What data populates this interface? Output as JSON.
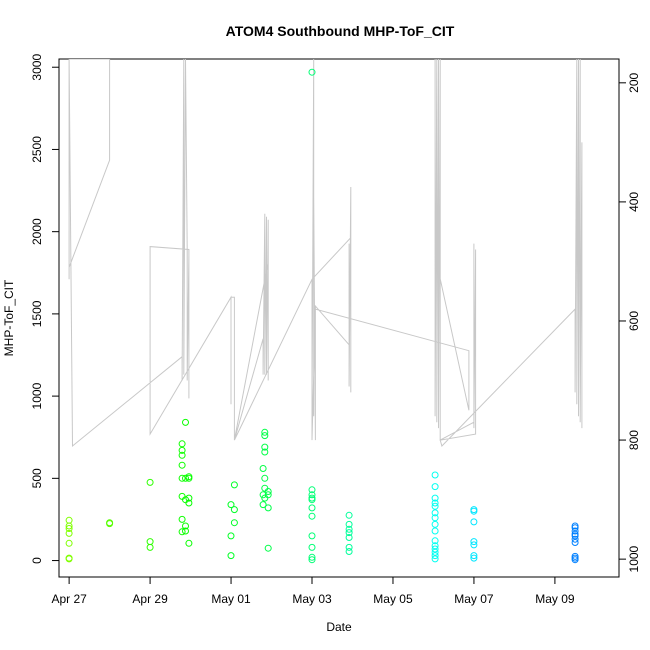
{
  "chart_data": {
    "type": "scatter",
    "title": "ATOM4 Southbound MHP-ToF_CIT",
    "xlabel": "Date",
    "ylabel": "MHP-ToF_CIT",
    "x_unit": "days",
    "xlim": [
      "2024-04-26T18:00",
      "2024-05-10T14:00"
    ],
    "ylim": [
      -100,
      3050
    ],
    "y_ticks": [
      0,
      500,
      1000,
      1500,
      2000,
      2500,
      3000
    ],
    "x_ticks": [
      {
        "label": "Apr 27",
        "date": "2024-04-27"
      },
      {
        "label": "Apr 29",
        "date": "2024-04-29"
      },
      {
        "label": "May 01",
        "date": "2024-05-01"
      },
      {
        "label": "May 03",
        "date": "2024-05-03"
      },
      {
        "label": "May 05",
        "date": "2024-05-05"
      },
      {
        "label": "May 07",
        "date": "2024-05-07"
      },
      {
        "label": "May 09",
        "date": "2024-05-09"
      }
    ],
    "y2lim": [
      1030,
      160
    ],
    "y2_ticks": [
      200,
      400,
      600,
      800,
      1000
    ],
    "series": [
      {
        "kind": "points",
        "points": [
          {
            "x": "2024-04-27T00:00",
            "y": 245
          },
          {
            "x": "2024-04-27T00:00",
            "y": 210
          },
          {
            "x": "2024-04-27T00:00",
            "y": 195
          },
          {
            "x": "2024-04-27T00:00",
            "y": 165
          },
          {
            "x": "2024-04-27T00:00",
            "y": 105
          },
          {
            "x": "2024-04-27T00:00",
            "y": 15
          },
          {
            "x": "2024-04-27T00:00",
            "y": 10
          },
          {
            "x": "2024-04-28T00:00",
            "y": 230
          },
          {
            "x": "2024-04-28T00:00",
            "y": 225
          },
          {
            "x": "2024-04-29T00:00",
            "y": 475
          },
          {
            "x": "2024-04-29T00:00",
            "y": 115
          },
          {
            "x": "2024-04-29T00:00",
            "y": 80
          },
          {
            "x": "2024-04-29T19:00",
            "y": 710
          },
          {
            "x": "2024-04-29T19:00",
            "y": 670
          },
          {
            "x": "2024-04-29T19:00",
            "y": 640
          },
          {
            "x": "2024-04-29T19:00",
            "y": 580
          },
          {
            "x": "2024-04-29T19:00",
            "y": 500
          },
          {
            "x": "2024-04-29T19:00",
            "y": 390
          },
          {
            "x": "2024-04-29T19:00",
            "y": 250
          },
          {
            "x": "2024-04-29T19:00",
            "y": 175
          },
          {
            "x": "2024-04-29T21:00",
            "y": 840
          },
          {
            "x": "2024-04-29T21:00",
            "y": 500
          },
          {
            "x": "2024-04-29T21:00",
            "y": 370
          },
          {
            "x": "2024-04-29T21:00",
            "y": 210
          },
          {
            "x": "2024-04-29T21:00",
            "y": 180
          },
          {
            "x": "2024-04-29T23:00",
            "y": 510
          },
          {
            "x": "2024-04-29T23:00",
            "y": 500
          },
          {
            "x": "2024-04-29T23:00",
            "y": 380
          },
          {
            "x": "2024-04-29T23:00",
            "y": 350
          },
          {
            "x": "2024-04-29T23:00",
            "y": 105
          },
          {
            "x": "2024-05-01T00:00",
            "y": 340
          },
          {
            "x": "2024-05-01T00:00",
            "y": 150
          },
          {
            "x": "2024-05-01T00:00",
            "y": 30
          },
          {
            "x": "2024-05-01T02:00",
            "y": 460
          },
          {
            "x": "2024-05-01T02:00",
            "y": 310
          },
          {
            "x": "2024-05-01T02:00",
            "y": 230
          },
          {
            "x": "2024-05-01T19:00",
            "y": 560
          },
          {
            "x": "2024-05-01T19:00",
            "y": 400
          },
          {
            "x": "2024-05-01T19:00",
            "y": 340
          },
          {
            "x": "2024-05-01T20:00",
            "y": 780
          },
          {
            "x": "2024-05-01T20:00",
            "y": 760
          },
          {
            "x": "2024-05-01T20:00",
            "y": 690
          },
          {
            "x": "2024-05-01T20:00",
            "y": 660
          },
          {
            "x": "2024-05-01T20:00",
            "y": 500
          },
          {
            "x": "2024-05-01T20:00",
            "y": 440
          },
          {
            "x": "2024-05-01T20:00",
            "y": 380
          },
          {
            "x": "2024-05-01T22:00",
            "y": 420
          },
          {
            "x": "2024-05-01T22:00",
            "y": 400
          },
          {
            "x": "2024-05-01T22:00",
            "y": 320
          },
          {
            "x": "2024-05-01T22:00",
            "y": 75
          },
          {
            "x": "2024-05-03T00:00",
            "y": 2970
          },
          {
            "x": "2024-05-03T00:00",
            "y": 430
          },
          {
            "x": "2024-05-03T00:00",
            "y": 400
          },
          {
            "x": "2024-05-03T00:00",
            "y": 380
          },
          {
            "x": "2024-05-03T00:00",
            "y": 370
          },
          {
            "x": "2024-05-03T00:00",
            "y": 320
          },
          {
            "x": "2024-05-03T00:00",
            "y": 270
          },
          {
            "x": "2024-05-03T00:00",
            "y": 150
          },
          {
            "x": "2024-05-03T00:00",
            "y": 80
          },
          {
            "x": "2024-05-03T00:00",
            "y": 20
          },
          {
            "x": "2024-05-03T00:00",
            "y": 5
          },
          {
            "x": "2024-05-03T22:00",
            "y": 275
          },
          {
            "x": "2024-05-03T22:00",
            "y": 220
          },
          {
            "x": "2024-05-03T22:00",
            "y": 190
          },
          {
            "x": "2024-05-03T22:00",
            "y": 170
          },
          {
            "x": "2024-05-03T22:00",
            "y": 140
          },
          {
            "x": "2024-05-03T22:00",
            "y": 80
          },
          {
            "x": "2024-05-03T22:00",
            "y": 55
          },
          {
            "x": "2024-05-06T01:00",
            "y": 520
          },
          {
            "x": "2024-05-06T01:00",
            "y": 450
          },
          {
            "x": "2024-05-06T01:00",
            "y": 380
          },
          {
            "x": "2024-05-06T01:00",
            "y": 350
          },
          {
            "x": "2024-05-06T01:00",
            "y": 330
          },
          {
            "x": "2024-05-06T01:00",
            "y": 290
          },
          {
            "x": "2024-05-06T01:00",
            "y": 260
          },
          {
            "x": "2024-05-06T01:00",
            "y": 220
          },
          {
            "x": "2024-05-06T01:00",
            "y": 180
          },
          {
            "x": "2024-05-06T01:00",
            "y": 120
          },
          {
            "x": "2024-05-06T01:00",
            "y": 90
          },
          {
            "x": "2024-05-06T01:00",
            "y": 70
          },
          {
            "x": "2024-05-06T01:00",
            "y": 50
          },
          {
            "x": "2024-05-06T01:00",
            "y": 30
          },
          {
            "x": "2024-05-06T01:00",
            "y": 10
          },
          {
            "x": "2024-05-07T00:00",
            "y": 310
          },
          {
            "x": "2024-05-07T00:00",
            "y": 300
          },
          {
            "x": "2024-05-07T00:00",
            "y": 235
          },
          {
            "x": "2024-05-07T00:00",
            "y": 115
          },
          {
            "x": "2024-05-07T00:00",
            "y": 95
          },
          {
            "x": "2024-05-07T00:00",
            "y": 30
          },
          {
            "x": "2024-05-07T00:00",
            "y": 15
          },
          {
            "x": "2024-05-09T12:00",
            "y": 210
          },
          {
            "x": "2024-05-09T12:00",
            "y": 200
          },
          {
            "x": "2024-05-09T12:00",
            "y": 180
          },
          {
            "x": "2024-05-09T12:00",
            "y": 160
          },
          {
            "x": "2024-05-09T12:00",
            "y": 150
          },
          {
            "x": "2024-05-09T12:00",
            "y": 130
          },
          {
            "x": "2024-05-09T12:00",
            "y": 110
          },
          {
            "x": "2024-05-09T12:00",
            "y": 25
          },
          {
            "x": "2024-05-09T12:00",
            "y": 15
          },
          {
            "x": "2024-05-09T12:00",
            "y": 5
          }
        ]
      },
      {
        "kind": "line",
        "axis": "right",
        "color": "#c8c8c8",
        "points": [
          {
            "x": "2024-04-27T00:00",
            "y": 160
          },
          {
            "x": "2024-04-27T00:00",
            "y": 530
          },
          {
            "x": "2024-04-27T00:00",
            "y": 510
          },
          {
            "x": "2024-04-28T00:00",
            "y": 330
          },
          {
            "x": "2024-04-28T00:00",
            "y": 160
          },
          {
            "x": "2024-04-28T00:00",
            "y": 160
          },
          {
            "x": "2024-04-27T00:00",
            "y": 160
          },
          {
            "x": "2024-04-27T02:00",
            "y": 810
          },
          {
            "x": "2024-04-29T19:00",
            "y": 660
          },
          {
            "x": "2024-04-29T19:00",
            "y": 700
          },
          {
            "x": "2024-04-29T20:00",
            "y": 160
          },
          {
            "x": "2024-04-29T20:00",
            "y": 690
          },
          {
            "x": "2024-04-29T21:00",
            "y": 160
          },
          {
            "x": "2024-04-29T22:00",
            "y": 480
          },
          {
            "x": "2024-04-29T22:00",
            "y": 700
          },
          {
            "x": "2024-04-29T23:00",
            "y": 490
          },
          {
            "x": "2024-04-29T23:00",
            "y": 730
          },
          {
            "x": "2024-04-29T23:00",
            "y": 480
          },
          {
            "x": "2024-04-29T00:00",
            "y": 475
          },
          {
            "x": "2024-04-29T00:00",
            "y": 790
          },
          {
            "x": "2024-05-01T00:00",
            "y": 560
          },
          {
            "x": "2024-05-01T00:00",
            "y": 740
          },
          {
            "x": "2024-05-01T00:00",
            "y": 560
          },
          {
            "x": "2024-05-01T02:00",
            "y": 560
          },
          {
            "x": "2024-05-01T02:00",
            "y": 800
          },
          {
            "x": "2024-05-01T19:00",
            "y": 630
          },
          {
            "x": "2024-05-01T19:00",
            "y": 690
          },
          {
            "x": "2024-05-01T20:00",
            "y": 420
          },
          {
            "x": "2024-05-01T20:00",
            "y": 690
          },
          {
            "x": "2024-05-01T21:00",
            "y": 425
          },
          {
            "x": "2024-05-01T21:00",
            "y": 690
          },
          {
            "x": "2024-05-01T22:00",
            "y": 430
          },
          {
            "x": "2024-05-01T22:00",
            "y": 700
          },
          {
            "x": "2024-05-01T22:00",
            "y": 500
          },
          {
            "x": "2024-05-01T02:00",
            "y": 800
          },
          {
            "x": "2024-05-03T00:00",
            "y": 530
          },
          {
            "x": "2024-05-03T00:00",
            "y": 580
          },
          {
            "x": "2024-05-03T00:00",
            "y": 760
          },
          {
            "x": "2024-05-03T01:00",
            "y": 160
          },
          {
            "x": "2024-05-03T01:00",
            "y": 760
          },
          {
            "x": "2024-05-03T01:00",
            "y": 390
          },
          {
            "x": "2024-05-03T02:00",
            "y": 800
          },
          {
            "x": "2024-05-03T02:00",
            "y": 580
          },
          {
            "x": "2024-05-03T02:00",
            "y": 575
          },
          {
            "x": "2024-05-03T22:00",
            "y": 640
          },
          {
            "x": "2024-05-03T22:00",
            "y": 470
          },
          {
            "x": "2024-05-03T22:00",
            "y": 710
          },
          {
            "x": "2024-05-03T23:00",
            "y": 375
          },
          {
            "x": "2024-05-03T23:00",
            "y": 720
          },
          {
            "x": "2024-05-03T23:00",
            "y": 460
          },
          {
            "x": "2024-05-03T00:00",
            "y": 530
          },
          {
            "x": "2024-05-03T00:00",
            "y": 800
          },
          {
            "x": "2024-05-03T02:00",
            "y": 580
          },
          {
            "x": "2024-05-06T21:00",
            "y": 650
          },
          {
            "x": "2024-05-06T21:00",
            "y": 750
          },
          {
            "x": "2024-05-06T01:00",
            "y": 490
          },
          {
            "x": "2024-05-06T01:00",
            "y": 160
          },
          {
            "x": "2024-05-06T01:00",
            "y": 760
          },
          {
            "x": "2024-05-06T02:00",
            "y": 160
          },
          {
            "x": "2024-05-06T02:00",
            "y": 770
          },
          {
            "x": "2024-05-06T03:00",
            "y": 160
          },
          {
            "x": "2024-05-06T03:00",
            "y": 780
          },
          {
            "x": "2024-05-06T04:00",
            "y": 160
          },
          {
            "x": "2024-05-06T04:00",
            "y": 800
          },
          {
            "x": "2024-05-07T00:00",
            "y": 770
          },
          {
            "x": "2024-05-07T00:00",
            "y": 470
          },
          {
            "x": "2024-05-07T00:00",
            "y": 780
          },
          {
            "x": "2024-05-07T01:00",
            "y": 480
          },
          {
            "x": "2024-05-07T01:00",
            "y": 790
          },
          {
            "x": "2024-05-06T04:00",
            "y": 800
          },
          {
            "x": "2024-05-06T05:00",
            "y": 810
          },
          {
            "x": "2024-05-09T12:00",
            "y": 580
          },
          {
            "x": "2024-05-09T12:00",
            "y": 720
          },
          {
            "x": "2024-05-09T13:00",
            "y": 160
          },
          {
            "x": "2024-05-09T13:00",
            "y": 740
          },
          {
            "x": "2024-05-09T14:00",
            "y": 160
          },
          {
            "x": "2024-05-09T14:00",
            "y": 760
          },
          {
            "x": "2024-05-09T15:00",
            "y": 160
          },
          {
            "x": "2024-05-09T15:00",
            "y": 770
          },
          {
            "x": "2024-05-09T16:00",
            "y": 300
          },
          {
            "x": "2024-05-09T16:00",
            "y": 780
          }
        ]
      }
    ],
    "point_color_scale": [
      "#80ff00",
      "#00ff00",
      "#00ff80",
      "#00ffff",
      "#0080ff"
    ],
    "grid": false,
    "legend": "none"
  }
}
